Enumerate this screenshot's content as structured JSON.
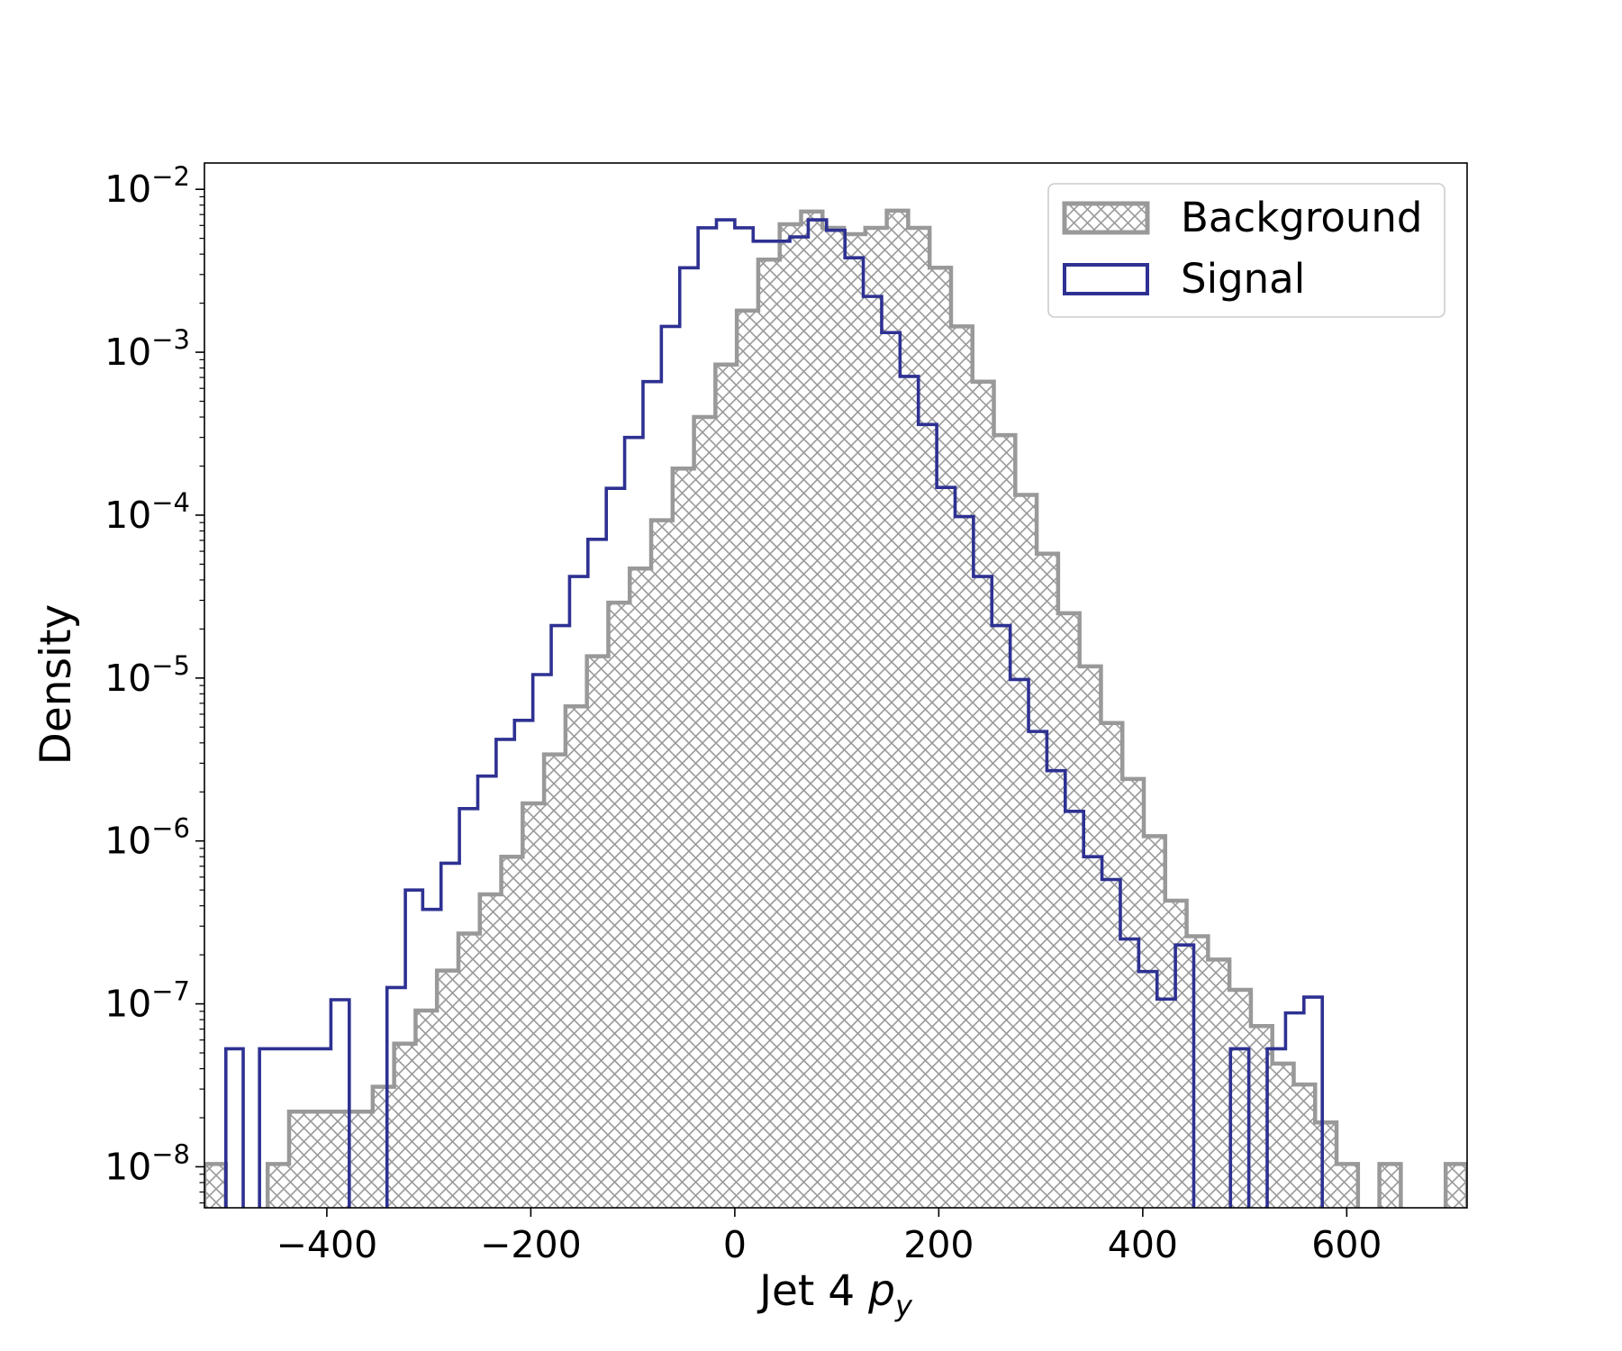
{
  "chart_data": {
    "type": "histogram-step",
    "xlabel_main": "Jet 4 ",
    "xlabel_symbol": "p",
    "xlabel_sub": "y",
    "ylabel": "Density",
    "xlim": [
      -520,
      718
    ],
    "ylim": [
      5.6e-09,
      0.0145
    ],
    "yscale": "log",
    "x_ticks": [
      -400,
      -200,
      0,
      200,
      400,
      600
    ],
    "x_tick_labels": [
      "−400",
      "−200",
      "0",
      "200",
      "400",
      "600"
    ],
    "y_ticks": [
      1e-08,
      1e-07,
      1e-06,
      1e-05,
      0.0001,
      0.001,
      0.01
    ],
    "y_tick_base": "10",
    "y_tick_exponents": [
      "−8",
      "−7",
      "−6",
      "−5",
      "−4",
      "−3",
      "−2"
    ],
    "legend_position": "upper-right",
    "legend": [
      {
        "label": "Background",
        "style": "hatched",
        "color": "#999999"
      },
      {
        "label": "Signal",
        "style": "outline",
        "color": "#2e3192"
      }
    ],
    "series": [
      {
        "name": "Background",
        "color": "#999999",
        "fill": "hatch",
        "bins": [
          [
            -520,
            -499,
            1.04e-08
          ],
          [
            -499,
            -458,
            0
          ],
          [
            -458,
            -437,
            1.04e-08
          ],
          [
            -437,
            -355,
            2.18e-08
          ],
          [
            -355,
            -334,
            3.1e-08
          ],
          [
            -334,
            -313,
            5.7e-08
          ],
          [
            -313,
            -292,
            9.1e-08
          ],
          [
            -292,
            -271,
            1.6e-07
          ],
          [
            -271,
            -250,
            2.7e-07
          ],
          [
            -250,
            -229,
            4.7e-07
          ],
          [
            -229,
            -208,
            8e-07
          ],
          [
            -208,
            -187,
            1.7e-06
          ],
          [
            -187,
            -166,
            3.4e-06
          ],
          [
            -166,
            -145,
            6.7e-06
          ],
          [
            -145,
            -124,
            1.36e-05
          ],
          [
            -124,
            -103,
            2.9e-05
          ],
          [
            -103,
            -82,
            4.7e-05
          ],
          [
            -82,
            -61,
            9.3e-05
          ],
          [
            -61,
            -40,
            0.000193
          ],
          [
            -40,
            -19,
            0.0004
          ],
          [
            -19,
            2,
            0.00084
          ],
          [
            2,
            23,
            0.0018
          ],
          [
            23,
            44,
            0.0037
          ],
          [
            44,
            65,
            0.0061
          ],
          [
            65,
            86,
            0.0073
          ],
          [
            86,
            107,
            0.0058
          ],
          [
            107,
            128,
            0.0053
          ],
          [
            128,
            149,
            0.0058
          ],
          [
            149,
            170,
            0.0074
          ],
          [
            170,
            191,
            0.0058
          ],
          [
            191,
            212,
            0.0033
          ],
          [
            212,
            233,
            0.00144
          ],
          [
            233,
            254,
            0.00066
          ],
          [
            254,
            275,
            0.00031
          ],
          [
            275,
            296,
            0.000133
          ],
          [
            296,
            317,
            5.8e-05
          ],
          [
            317,
            338,
            2.5e-05
          ],
          [
            338,
            359,
            1.18e-05
          ],
          [
            359,
            380,
            5.3e-06
          ],
          [
            380,
            401,
            2.4e-06
          ],
          [
            401,
            422,
            1.07e-06
          ],
          [
            422,
            443,
            4.3e-07
          ],
          [
            443,
            464,
            2.6e-07
          ],
          [
            464,
            485,
            1.87e-07
          ],
          [
            485,
            506,
            1.22e-07
          ],
          [
            506,
            527,
            7.3e-08
          ],
          [
            527,
            548,
            4.3e-08
          ],
          [
            548,
            569,
            3.2e-08
          ],
          [
            569,
            590,
            1.87e-08
          ],
          [
            590,
            611,
            1.04e-08
          ],
          [
            611,
            632,
            0
          ],
          [
            632,
            653,
            1.04e-08
          ],
          [
            653,
            697,
            0
          ],
          [
            697,
            718,
            1.04e-08
          ]
        ]
      },
      {
        "name": "Signal",
        "color": "#2e3192",
        "fill": "none",
        "bins": [
          [
            -499,
            -482,
            5.3e-08
          ],
          [
            -482,
            -466,
            0
          ],
          [
            -466,
            -396,
            5.3e-08
          ],
          [
            -396,
            -378,
            1.06e-07
          ],
          [
            -378,
            -360,
            0
          ],
          [
            -360,
            -341,
            0
          ],
          [
            -341,
            -323,
            1.26e-07
          ],
          [
            -323,
            -306,
            5e-07
          ],
          [
            -306,
            -288,
            3.8e-07
          ],
          [
            -288,
            -270,
            7.3e-07
          ],
          [
            -270,
            -252,
            1.58e-06
          ],
          [
            -252,
            -234,
            2.5e-06
          ],
          [
            -234,
            -216,
            4.2e-06
          ],
          [
            -216,
            -198,
            5.5e-06
          ],
          [
            -198,
            -180,
            1.05e-05
          ],
          [
            -180,
            -162,
            2.1e-05
          ],
          [
            -162,
            -144,
            4.2e-05
          ],
          [
            -144,
            -126,
            7.1e-05
          ],
          [
            -126,
            -108,
            0.000146
          ],
          [
            -108,
            -90,
            0.0003
          ],
          [
            -90,
            -72,
            0.00066
          ],
          [
            -72,
            -54,
            0.00144
          ],
          [
            -54,
            -36,
            0.0033
          ],
          [
            -36,
            -18,
            0.0058
          ],
          [
            -18,
            0,
            0.0065
          ],
          [
            0,
            18,
            0.0058
          ],
          [
            18,
            36,
            0.0048
          ],
          [
            36,
            54,
            0.0048
          ],
          [
            54,
            72,
            0.0051
          ],
          [
            72,
            90,
            0.0065
          ],
          [
            90,
            108,
            0.0056
          ],
          [
            108,
            126,
            0.0038
          ],
          [
            126,
            144,
            0.0022
          ],
          [
            144,
            162,
            0.00132
          ],
          [
            162,
            180,
            0.00071
          ],
          [
            180,
            198,
            0.00036
          ],
          [
            198,
            216,
            0.000148
          ],
          [
            216,
            234,
            9.8e-05
          ],
          [
            234,
            252,
            4.2e-05
          ],
          [
            252,
            270,
            2.1e-05
          ],
          [
            270,
            288,
            9.8e-06
          ],
          [
            288,
            306,
            4.7e-06
          ],
          [
            306,
            324,
            2.7e-06
          ],
          [
            324,
            342,
            1.52e-06
          ],
          [
            342,
            360,
            8e-07
          ],
          [
            360,
            378,
            5.8e-07
          ],
          [
            378,
            396,
            2.5e-07
          ],
          [
            396,
            414,
            1.58e-07
          ],
          [
            414,
            432,
            1.07e-07
          ],
          [
            432,
            450,
            2.3e-07
          ],
          [
            450,
            468,
            0
          ],
          [
            468,
            486,
            0
          ],
          [
            486,
            504,
            5.3e-08
          ],
          [
            504,
            522,
            0
          ],
          [
            522,
            540,
            5.3e-08
          ],
          [
            540,
            558,
            8.8e-08
          ],
          [
            558,
            576,
            1.1e-07
          ],
          [
            576,
            594,
            0
          ]
        ]
      }
    ]
  }
}
